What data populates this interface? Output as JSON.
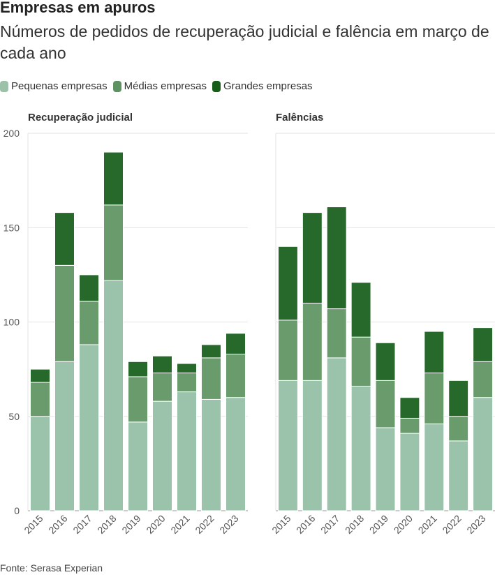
{
  "title": "Empresas em apuros",
  "subtitle": "Números de pedidos de recuperação judicial e falência em março de cada ano",
  "source": "Fonte: Serasa Experian",
  "colors": {
    "pequenas": "#9bc2ab",
    "medias": "#6a9b6d",
    "grandes": "#26692b"
  },
  "legend": [
    "Pequenas empresas",
    "Médias empresas",
    "Grandes empresas"
  ],
  "chart_data": [
    {
      "type": "bar",
      "stacked": true,
      "title": "Recuperação judicial",
      "categories": [
        "2015",
        "2016",
        "2017",
        "2018",
        "2019",
        "2020",
        "2021",
        "2022",
        "2023"
      ],
      "ylim": [
        0,
        200
      ],
      "yticks": [
        0,
        50,
        100,
        150,
        200
      ],
      "grid": true,
      "series": [
        {
          "name": "Pequenas empresas",
          "values": [
            50,
            79,
            88,
            122,
            47,
            58,
            63,
            59,
            60
          ]
        },
        {
          "name": "Médias empresas",
          "values": [
            18,
            51,
            23,
            40,
            24,
            15,
            10,
            22,
            23
          ]
        },
        {
          "name": "Grandes empresas",
          "values": [
            7,
            28,
            14,
            28,
            8,
            9,
            5,
            7,
            11
          ]
        }
      ]
    },
    {
      "type": "bar",
      "stacked": true,
      "title": "Falências",
      "categories": [
        "2015",
        "2016",
        "2017",
        "2018",
        "2019",
        "2020",
        "2021",
        "2022",
        "2023"
      ],
      "ylim": [
        0,
        200
      ],
      "yticks": [
        0,
        50,
        100,
        150,
        200
      ],
      "grid": true,
      "series": [
        {
          "name": "Pequenas empresas",
          "values": [
            69,
            69,
            81,
            66,
            44,
            41,
            46,
            37,
            60
          ]
        },
        {
          "name": "Médias empresas",
          "values": [
            32,
            41,
            26,
            26,
            25,
            8,
            27,
            13,
            19
          ]
        },
        {
          "name": "Grandes empresas",
          "values": [
            39,
            48,
            54,
            29,
            20,
            11,
            22,
            19,
            18
          ]
        }
      ]
    }
  ]
}
